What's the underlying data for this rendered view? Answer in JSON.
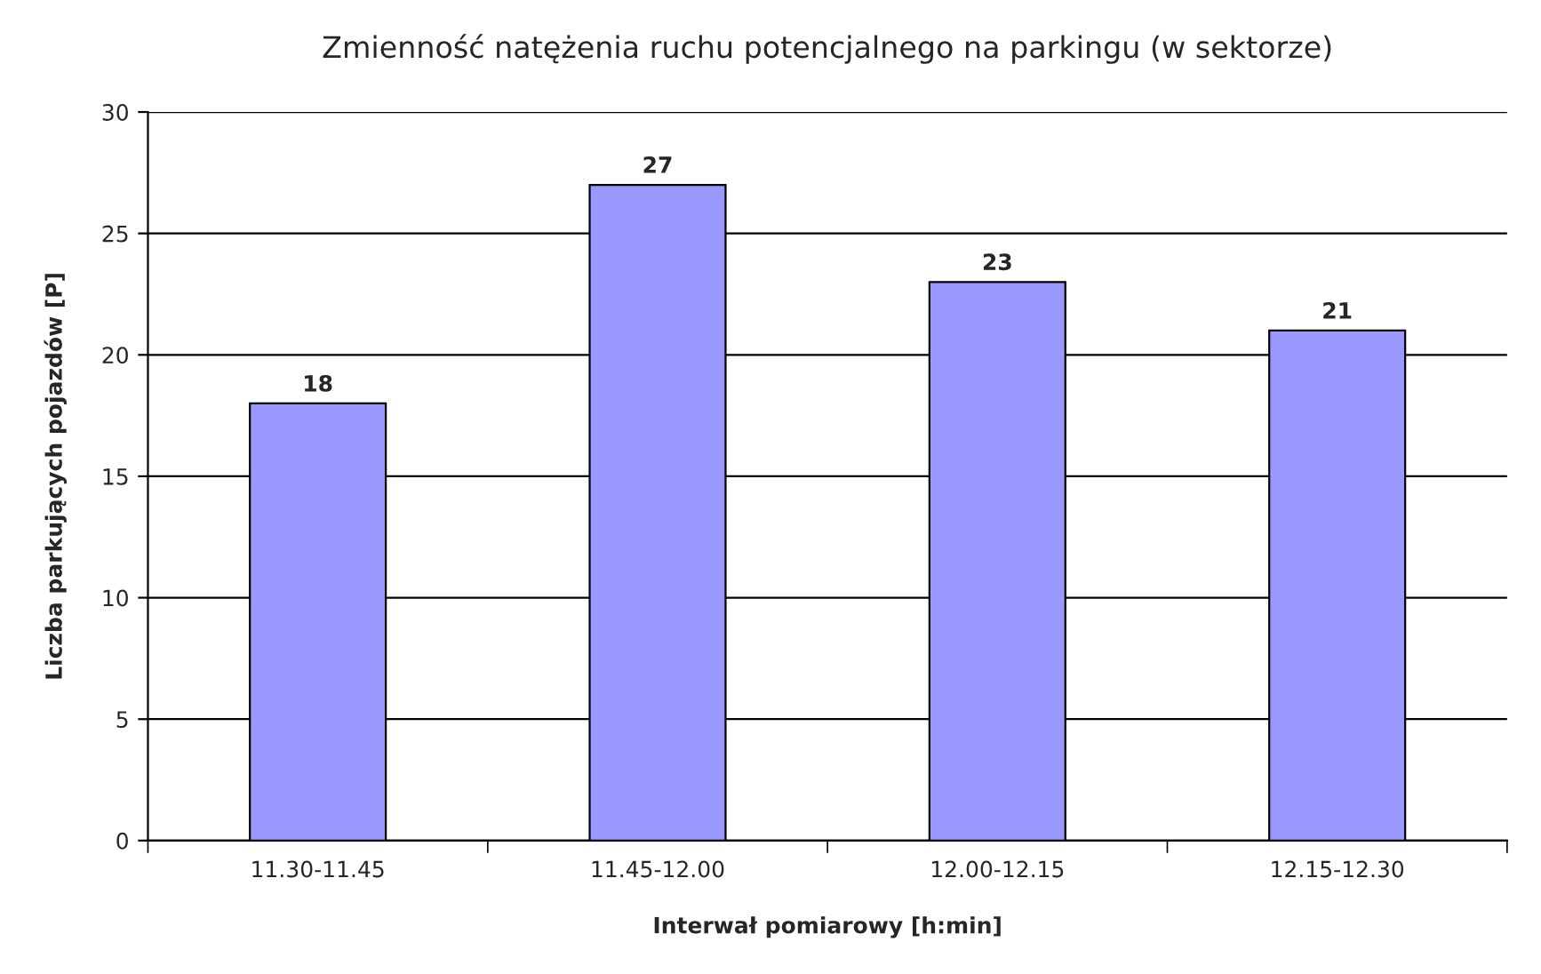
{
  "chart_data": {
    "type": "bar",
    "title": "Zmienność natężenia ruchu potencjalnego na parkingu (w sektorze)",
    "xlabel": "Interwał pomiarowy [h:min]",
    "ylabel": "Liczba parkujących pojazdów [P]",
    "categories": [
      "11.30-11.45",
      "11.45-12.00",
      "12.00-12.15",
      "12.15-12.30"
    ],
    "values": [
      18,
      27,
      23,
      21
    ],
    "color": "#9999ff",
    "ylim": [
      0,
      30
    ],
    "yticks": [
      0,
      5,
      10,
      15,
      20,
      25,
      30
    ],
    "grid": "y",
    "data_labels": true
  }
}
